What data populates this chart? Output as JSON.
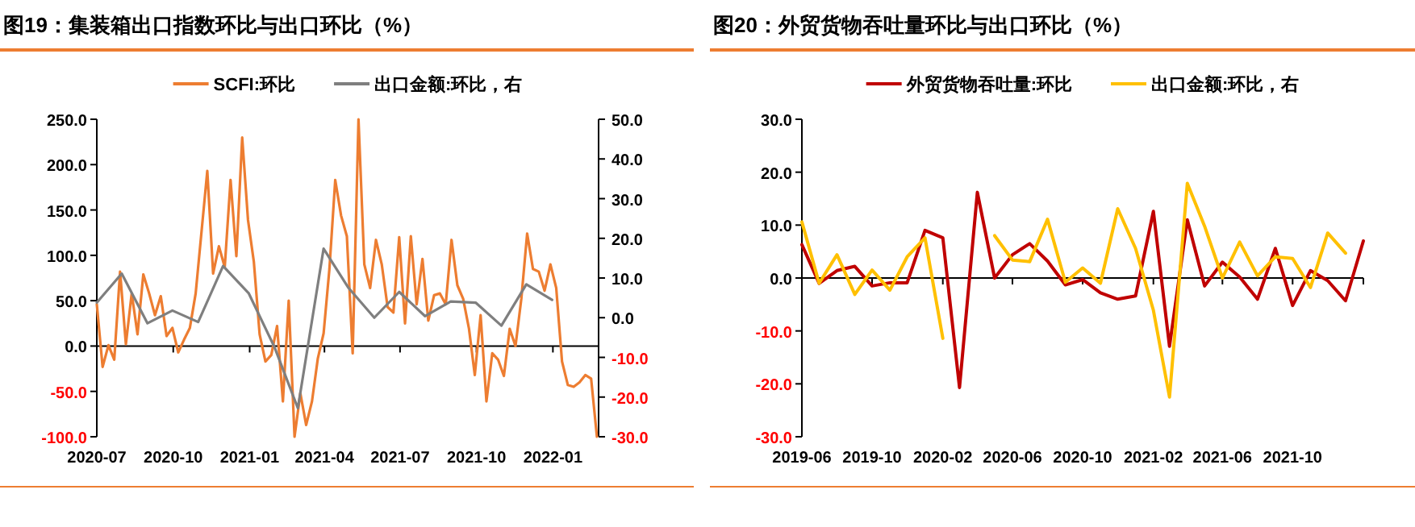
{
  "chart_data": [
    {
      "type": "line",
      "title": "图19：集装箱出口指数环比与出口环比（%）",
      "legend": "top",
      "xlim": [
        "2020-07-01",
        "2022-02-25"
      ],
      "xticks": [
        "2020-07",
        "2020-10",
        "2021-01",
        "2021-04",
        "2021-07",
        "2021-10",
        "2022-01"
      ],
      "ylim": [
        -100,
        250
      ],
      "yticks": [
        {
          "value": -100,
          "label": "-100.0"
        },
        {
          "value": -50,
          "label": "-50.0"
        },
        {
          "value": 0,
          "label": "0.0"
        },
        {
          "value": 50,
          "label": "50.0"
        },
        {
          "value": 100,
          "label": "100.0"
        },
        {
          "value": 150,
          "label": "150.0"
        },
        {
          "value": 200,
          "label": "200.0"
        },
        {
          "value": 250,
          "label": "250.0"
        }
      ],
      "y2lim": [
        -30,
        50
      ],
      "y2ticks": [
        {
          "value": -30,
          "label": "-30.0"
        },
        {
          "value": -20,
          "label": "-20.0"
        },
        {
          "value": -10,
          "label": "-10.0"
        },
        {
          "value": 0,
          "label": "0.0"
        },
        {
          "value": 10,
          "label": "10.0"
        },
        {
          "value": 20,
          "label": "20.0"
        },
        {
          "value": 30,
          "label": "30.0"
        },
        {
          "value": 40,
          "label": "40.0"
        },
        {
          "value": 50,
          "label": "50.0"
        }
      ],
      "series": [
        {
          "name": "SCFI:环比",
          "color": "#ed7d31",
          "x": [
            "2020-07-01",
            "2020-07-08",
            "2020-07-15",
            "2020-07-22",
            "2020-07-29",
            "2020-08-05",
            "2020-08-12",
            "2020-08-19",
            "2020-08-26",
            "2020-09-02",
            "2020-09-09",
            "2020-09-16",
            "2020-09-23",
            "2020-09-30",
            "2020-10-07",
            "2020-10-14",
            "2020-10-21",
            "2020-10-28",
            "2020-11-11",
            "2020-11-18",
            "2020-11-25",
            "2020-12-02",
            "2020-12-09",
            "2020-12-16",
            "2020-12-23",
            "2020-12-30",
            "2021-01-06",
            "2021-01-13",
            "2021-01-20",
            "2021-01-27",
            "2021-02-03",
            "2021-02-10",
            "2021-02-17",
            "2021-02-24",
            "2021-03-03",
            "2021-03-10",
            "2021-03-17",
            "2021-03-24",
            "2021-03-31",
            "2021-04-07",
            "2021-04-14",
            "2021-04-21",
            "2021-04-28",
            "2021-05-05",
            "2021-05-12",
            "2021-05-19",
            "2021-05-26",
            "2021-06-02",
            "2021-06-09",
            "2021-06-16",
            "2021-06-23",
            "2021-06-30",
            "2021-07-07",
            "2021-07-14",
            "2021-07-21",
            "2021-07-28",
            "2021-08-04",
            "2021-08-11",
            "2021-08-18",
            "2021-08-25",
            "2021-09-01",
            "2021-09-08",
            "2021-09-15",
            "2021-09-22",
            "2021-09-29",
            "2021-10-06",
            "2021-10-13",
            "2021-10-20",
            "2021-10-27",
            "2021-11-03",
            "2021-11-10",
            "2021-11-17",
            "2021-11-24",
            "2021-12-01",
            "2021-12-08",
            "2021-12-15",
            "2021-12-22",
            "2021-12-29",
            "2022-01-05",
            "2022-01-12",
            "2022-01-19",
            "2022-01-26",
            "2022-02-02",
            "2022-02-09",
            "2022-02-16",
            "2022-02-23"
          ],
          "values": [
            46,
            -23,
            1,
            -15,
            82,
            2,
            58,
            13,
            79,
            58,
            34,
            55,
            11,
            20,
            -7,
            7,
            20,
            58,
            193,
            80,
            110,
            87,
            183,
            99,
            230,
            139,
            93,
            13,
            -17,
            -10,
            22,
            -61,
            50,
            -100,
            -52,
            -87,
            -61,
            -14,
            14,
            85,
            183,
            144,
            121,
            -8,
            250,
            90,
            64,
            117,
            90,
            43,
            37,
            120,
            25,
            121,
            46,
            96,
            28,
            56,
            58,
            46,
            117,
            67,
            52,
            19,
            -32,
            34,
            -61,
            -8,
            -15,
            -33,
            19,
            0,
            52,
            124,
            85,
            82,
            61,
            90,
            64,
            -17,
            -43,
            -45,
            -40,
            -32,
            -36,
            -100
          ]
        },
        {
          "name": "出口金额:环比，右",
          "color": "#7f7f7f",
          "axis": "y2",
          "x": [
            "2020-07-01",
            "2020-07-31",
            "2020-08-31",
            "2020-09-30",
            "2020-10-31",
            "2020-11-30",
            "2020-12-31",
            "2021-01-31",
            "2021-02-28",
            "2021-03-31",
            "2021-04-30",
            "2021-05-31",
            "2021-06-30",
            "2021-07-31",
            "2021-08-31",
            "2021-09-30",
            "2021-10-31",
            "2021-11-30",
            "2021-12-31"
          ],
          "values": [
            3.8,
            11.1,
            -1.4,
            1.8,
            -1.1,
            13.0,
            6.1,
            -7.5,
            -22.8,
            17.4,
            7.5,
            0,
            6.5,
            0.4,
            4.1,
            3.8,
            -2.0,
            8.4,
            4.5
          ]
        }
      ]
    },
    {
      "type": "line",
      "title": "图20：外贸货物吞吐量环比与出口环比（%）",
      "legend": "top",
      "x": [
        "2019-06",
        "2019-07",
        "2019-08",
        "2019-09",
        "2019-10",
        "2019-11",
        "2019-12",
        "2020-01",
        "2020-02",
        "2020-03",
        "2020-04",
        "2020-05",
        "2020-06",
        "2020-07",
        "2020-08",
        "2020-09",
        "2020-10",
        "2020-11",
        "2020-12",
        "2021-01",
        "2021-02",
        "2021-03",
        "2021-04",
        "2021-05",
        "2021-06",
        "2021-07",
        "2021-08",
        "2021-09",
        "2021-10",
        "2021-11",
        "2021-12",
        "2022-01",
        "2022-02"
      ],
      "xlim": [
        "2019-06",
        "2022-02"
      ],
      "xticks": [
        "2019-06",
        "2019-10",
        "2020-02",
        "2020-06",
        "2020-10",
        "2021-02",
        "2021-06",
        "2021-10",
        {
          "value": "2022-02",
          "label": null
        }
      ],
      "ylim": [
        -30,
        30
      ],
      "yticks": [
        {
          "value": -30,
          "label": "-30.0"
        },
        {
          "value": -20,
          "label": "-20.0"
        },
        {
          "value": -10,
          "label": "-10.0"
        },
        {
          "value": 0,
          "label": "0.0"
        },
        {
          "value": 10,
          "label": "10.0"
        },
        {
          "value": 20,
          "label": "20.0"
        },
        {
          "value": 30,
          "label": "30.0"
        }
      ],
      "series": [
        {
          "name": "外贸货物吞吐量:环比",
          "color": "#c00000",
          "values": [
            6.3,
            -1.0,
            1.4,
            2.2,
            -1.5,
            -0.9,
            -0.9,
            9.0,
            7.6,
            -20.7,
            16.2,
            0,
            4.4,
            6.5,
            3.2,
            -1.3,
            -0.3,
            -2.8,
            -4.0,
            -3.4,
            12.6,
            -12.9,
            11.0,
            -1.5,
            3.0,
            0.2,
            -4.0,
            5.6,
            -5.2,
            1.4,
            -0.5,
            -4.3,
            7.0
          ]
        },
        {
          "name": "出口金额:环比，右",
          "color": "#ffc000",
          "values": [
            10.6,
            -1.0,
            4.4,
            -3.1,
            1.5,
            -2.3,
            4.0,
            7.6,
            -11.4,
            null,
            null,
            8.0,
            3.4,
            3.1,
            11.1,
            -0.8,
            1.9,
            -1.0,
            13.1,
            5.6,
            -6.1,
            -22.5,
            17.9,
            9.8,
            0,
            6.8,
            0.4,
            4.0,
            3.7,
            -1.8,
            8.5,
            4.7,
            null
          ]
        }
      ]
    }
  ]
}
